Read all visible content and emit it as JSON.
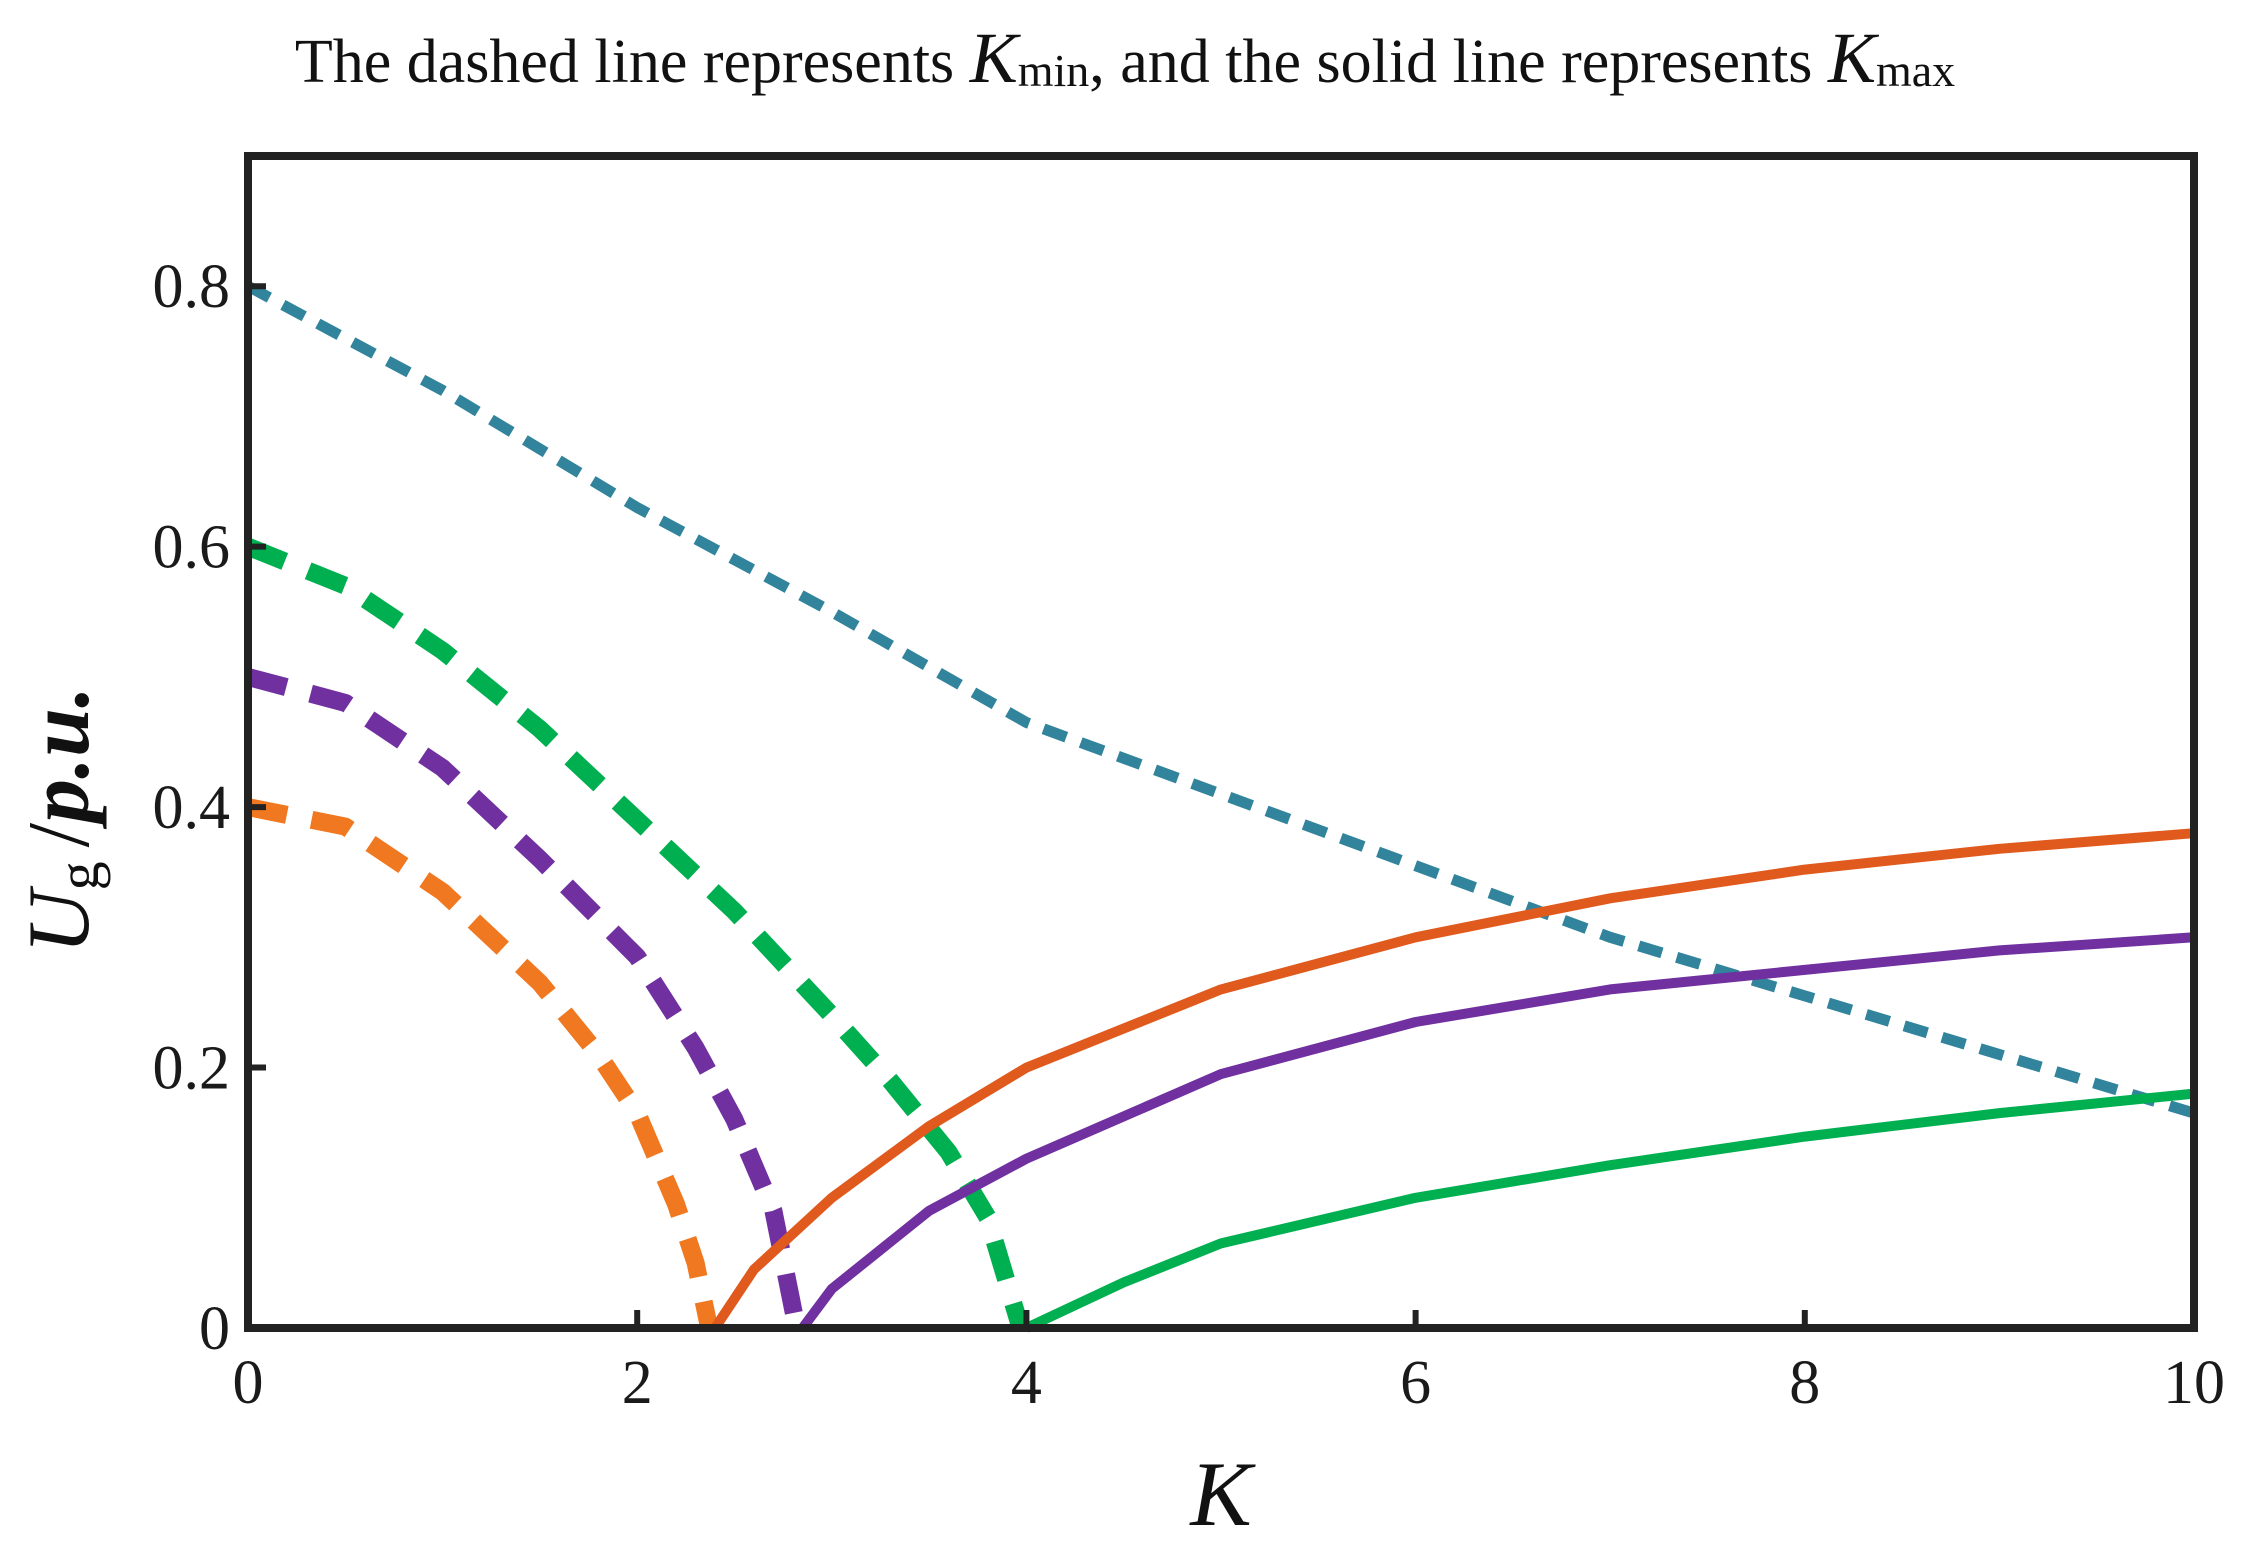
{
  "chart_data": {
    "type": "line",
    "title": [
      "The dashed line represents ",
      "K",
      "min",
      ", and the solid line represents ",
      "K",
      "max"
    ],
    "x_label": "K",
    "y_label": [
      "U",
      "g",
      "/",
      "p.u."
    ],
    "xlim": [
      0,
      10
    ],
    "ylim": [
      0,
      0.9
    ],
    "xticks": [
      0,
      2,
      4,
      6,
      8,
      10
    ],
    "yticks": [
      0,
      0.2,
      0.4,
      0.6,
      0.8
    ],
    "series": [
      {
        "color": "#f07820",
        "style": "dashed",
        "linewidth": 18,
        "x": [
          0,
          0.5,
          1,
          1.5,
          1.8,
          2.0,
          2.2,
          2.3,
          2.37
        ],
        "values": [
          0.4,
          0.385,
          0.335,
          0.265,
          0.21,
          0.165,
          0.095,
          0.05,
          0
        ]
      },
      {
        "color": "#7030a0",
        "style": "dashed",
        "linewidth": 18,
        "x": [
          0,
          0.5,
          1,
          1.5,
          2,
          2.3,
          2.5,
          2.7,
          2.82
        ],
        "values": [
          0.5,
          0.48,
          0.43,
          0.36,
          0.285,
          0.215,
          0.16,
          0.09,
          0
        ]
      },
      {
        "color": "#00b050",
        "style": "dashed",
        "linewidth": 18,
        "x": [
          0,
          0.5,
          1,
          1.5,
          2,
          2.5,
          3,
          3.3,
          3.6,
          3.8,
          3.97
        ],
        "values": [
          0.6,
          0.57,
          0.52,
          0.46,
          0.39,
          0.32,
          0.24,
          0.19,
          0.135,
          0.085,
          0
        ]
      },
      {
        "color": "#31849b",
        "style": "dashed",
        "linewidth": 11,
        "x": [
          0,
          1,
          2,
          3,
          4,
          5,
          6,
          7,
          8,
          9,
          10
        ],
        "values": [
          0.8,
          0.72,
          0.63,
          0.55,
          0.465,
          0.41,
          0.355,
          0.3,
          0.255,
          0.21,
          0.165
        ]
      },
      {
        "color": "#e05a1e",
        "style": "solid",
        "linewidth": 10,
        "x": [
          2.4,
          2.6,
          3,
          3.5,
          4,
          5,
          6,
          7,
          8,
          9,
          10
        ],
        "values": [
          0,
          0.045,
          0.1,
          0.155,
          0.2,
          0.26,
          0.3,
          0.33,
          0.352,
          0.368,
          0.38
        ]
      },
      {
        "color": "#7030a0",
        "style": "solid",
        "linewidth": 10,
        "x": [
          2.85,
          3,
          3.5,
          4,
          5,
          6,
          7,
          8,
          9,
          10
        ],
        "values": [
          0,
          0.03,
          0.09,
          0.13,
          0.195,
          0.235,
          0.26,
          0.275,
          0.29,
          0.3
        ]
      },
      {
        "color": "#00b050",
        "style": "solid",
        "linewidth": 10,
        "x": [
          4,
          4.5,
          5,
          6,
          7,
          8,
          9,
          10
        ],
        "values": [
          0,
          0.035,
          0.065,
          0.1,
          0.125,
          0.147,
          0.165,
          0.18
        ]
      }
    ]
  }
}
